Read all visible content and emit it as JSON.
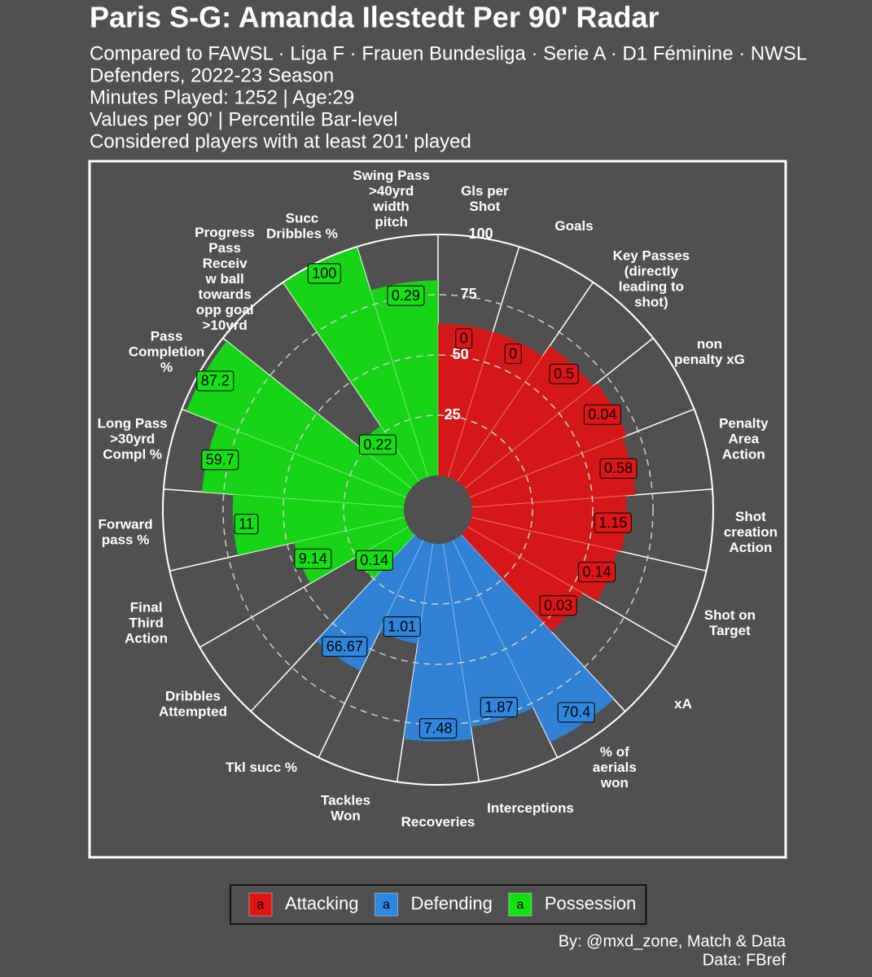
{
  "chart_data": {
    "type": "bar",
    "polar": true,
    "title": "Paris S-G: Amanda Ilestedt Per 90' Radar",
    "subtitle": [
      "Compared to FAWSL · Liga F · Frauen Bundesliga · Serie A · D1 Féminine · NWSL",
      "Defenders, 2022-23 Season",
      "Minutes Played: 1252 | Age:29",
      "Values per 90' | Percentile Bar-level",
      "Considered players with at least 201' played"
    ],
    "caption": [
      "By: @mxd_zone, Match & Data",
      "Data: FBref"
    ],
    "categories": [
      [
        "Gls per",
        "Shot"
      ],
      [
        "Goals"
      ],
      [
        "Key Passes",
        "(directly",
        "leading to",
        "shot)"
      ],
      [
        "non",
        "penalty xG"
      ],
      [
        "Penalty",
        "Area",
        "Action"
      ],
      [
        "Shot",
        "creation",
        "Action"
      ],
      [
        "Shot on",
        "Target"
      ],
      [
        "xA"
      ],
      [
        "% of",
        "aerials",
        "won"
      ],
      [
        "Interceptions"
      ],
      [
        "Recoveries"
      ],
      [
        "Tackles",
        "Won"
      ],
      [
        "Tkl succ %"
      ],
      [
        "Dribbles",
        "Attempted"
      ],
      [
        "Final",
        "Third",
        "Action"
      ],
      [
        "Forward",
        "pass %"
      ],
      [
        "Long Pass",
        ">30yrd",
        "Compl %"
      ],
      [
        "Pass",
        "Completion",
        "%"
      ],
      [
        "Progress",
        "Pass",
        "Receiv",
        "w ball",
        "towards",
        "opp goal",
        ">10yrd"
      ],
      [
        "Succ",
        "Dribbles %"
      ],
      [
        "Swing Pass",
        ">40yrd",
        "width",
        "pitch"
      ]
    ],
    "series": [
      {
        "name": "Attacking",
        "color": "#e01414",
        "values": [
          63,
          63,
          68,
          70,
          68,
          64,
          62,
          55,
          null,
          null,
          null,
          null,
          null,
          null,
          null,
          null,
          null,
          null,
          null,
          null,
          null
        ],
        "per90": [
          0,
          0,
          0.5,
          0.04,
          0.58,
          1.15,
          0.14,
          0.03,
          null,
          null,
          null,
          null,
          null,
          null,
          null,
          null,
          null,
          null,
          null,
          null,
          null
        ]
      },
      {
        "name": "Defending",
        "color": "#2e86de",
        "values": [
          null,
          null,
          null,
          null,
          null,
          null,
          null,
          null,
          93,
          77,
          82,
          42,
          60,
          null,
          null,
          null,
          null,
          null,
          null,
          null,
          null
        ],
        "per90": [
          null,
          null,
          null,
          null,
          null,
          null,
          null,
          null,
          70.4,
          1.87,
          7.48,
          1.01,
          66.67,
          null,
          null,
          null,
          null,
          null,
          null,
          null,
          null
        ]
      },
      {
        "name": "Possession",
        "color": "#12e012",
        "values": [
          null,
          null,
          null,
          null,
          null,
          null,
          null,
          null,
          null,
          null,
          null,
          null,
          null,
          25,
          47,
          71,
          84,
          98,
          28,
          100,
          81
        ],
        "per90": [
          null,
          null,
          null,
          null,
          null,
          null,
          null,
          null,
          null,
          null,
          null,
          null,
          null,
          0.14,
          9.14,
          11,
          59.7,
          87.2,
          0.22,
          100,
          0.29
        ]
      }
    ],
    "rlim": [
      0,
      100
    ],
    "rticks": [
      25,
      50,
      75,
      100
    ],
    "legend_key_text": "a"
  }
}
